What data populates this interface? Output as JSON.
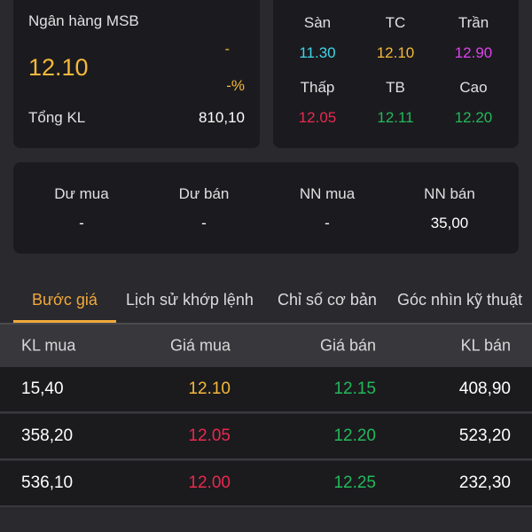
{
  "stock": {
    "name": "Ngân hàng MSB",
    "price": "12.10",
    "change": "-",
    "change_pct": "-%",
    "total_vol_label": "Tổng KL",
    "total_vol": "810,10"
  },
  "prices": [
    {
      "label": "Sàn",
      "value": "11.30",
      "color": "#3fd6e8"
    },
    {
      "label": "TC",
      "value": "12.10",
      "color": "#f5b83a"
    },
    {
      "label": "Trần",
      "value": "12.90",
      "color": "#e040f0"
    },
    {
      "label": "Thấp",
      "value": "12.05",
      "color": "#e8294f"
    },
    {
      "label": "TB",
      "value": "12.11",
      "color": "#22b85a"
    },
    {
      "label": "Cao",
      "value": "12.20",
      "color": "#22b85a"
    }
  ],
  "summary": [
    {
      "label": "Dư mua",
      "value": "-"
    },
    {
      "label": "Dư bán",
      "value": "-"
    },
    {
      "label": "NN mua",
      "value": "-"
    },
    {
      "label": "NN bán",
      "value": "35,00"
    }
  ],
  "tabs": [
    "Bước giá",
    "Lịch sử khớp lệnh",
    "Chỉ số cơ bản",
    "Góc nhìn kỹ thuật"
  ],
  "table": {
    "headers": [
      "KL mua",
      "Giá mua",
      "Giá bán",
      "KL bán"
    ],
    "rows": [
      {
        "buy_vol": "15,40",
        "buy_price": "12.10",
        "buy_color": "#f5b83a",
        "sell_price": "12.15",
        "sell_color": "#22b85a",
        "sell_vol": "408,90"
      },
      {
        "buy_vol": "358,20",
        "buy_price": "12.05",
        "buy_color": "#e8294f",
        "sell_price": "12.20",
        "sell_color": "#22b85a",
        "sell_vol": "523,20"
      },
      {
        "buy_vol": "536,10",
        "buy_price": "12.00",
        "buy_color": "#e8294f",
        "sell_price": "12.25",
        "sell_color": "#22b85a",
        "sell_vol": "232,30"
      }
    ]
  },
  "colors": {
    "accent": "#f2a93b",
    "background": "#29292e",
    "card": "#1b1b1f"
  }
}
